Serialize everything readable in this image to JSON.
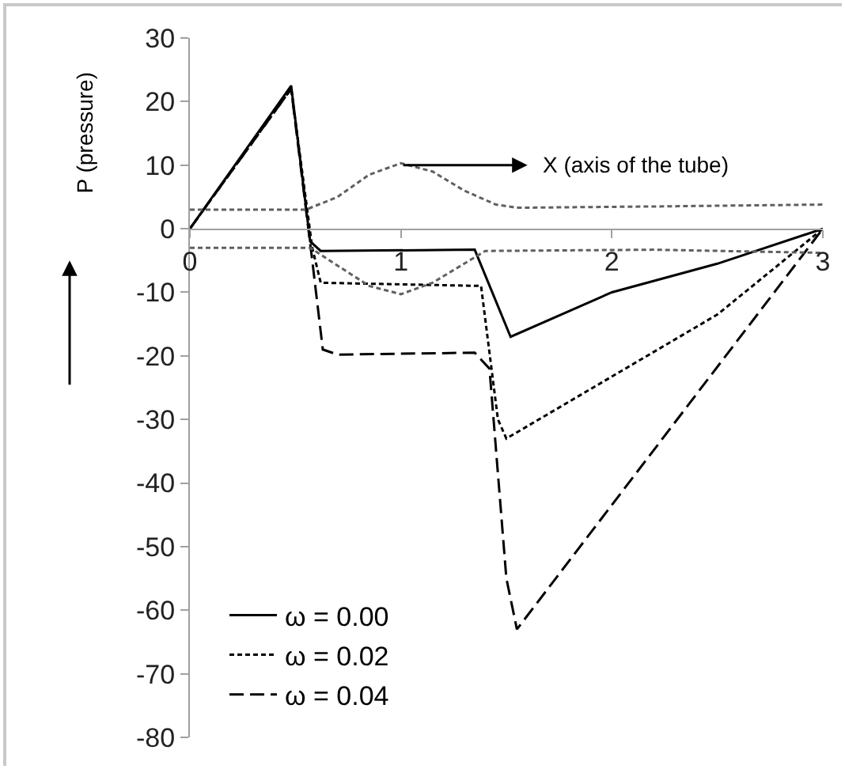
{
  "chart_data": {
    "type": "line",
    "xlabel": "X (axis of the tube)",
    "ylabel": "P (pressure)",
    "series": [
      {
        "name": "ω = 0.00",
        "color": "#000000",
        "line_style": "solid",
        "x": [
          0,
          0.48,
          0.57,
          0.62,
          1.35,
          1.52,
          2,
          2.5,
          3
        ],
        "values": [
          0,
          22.5,
          -2,
          -3.5,
          -3.3,
          -17,
          -10,
          -5.5,
          0
        ]
      },
      {
        "name": "ω = 0.02",
        "color": "#000000",
        "line_style": "dotted",
        "x": [
          0,
          0.48,
          0.58,
          0.62,
          1.38,
          1.46,
          1.5,
          2.5,
          3
        ],
        "values": [
          0,
          22,
          -3,
          -8.5,
          -9,
          -30,
          -33,
          -13.5,
          0
        ]
      },
      {
        "name": "ω = 0.04",
        "color": "#000000",
        "line_style": "dashed",
        "x": [
          0,
          0.48,
          0.58,
          0.63,
          0.7,
          1.35,
          1.42,
          1.5,
          1.55,
          3
        ],
        "values": [
          0,
          22,
          -5,
          -19,
          -19.8,
          -19.5,
          -22,
          -55,
          -63,
          0
        ]
      },
      {
        "color": "#606060",
        "line_style": "dotted",
        "x": [
          0,
          0.55,
          0.7,
          0.85,
          1,
          1.15,
          1.3,
          1.45,
          1.55,
          2.2,
          3
        ],
        "values": [
          3,
          3,
          5,
          8.5,
          10.3,
          9,
          6,
          3.8,
          3.3,
          3.5,
          3.8
        ]
      },
      {
        "color": "#606060",
        "line_style": "dotted",
        "x": [
          0,
          0.57,
          0.7,
          0.85,
          1,
          1.15,
          1.3,
          1.4,
          2.2,
          3
        ],
        "values": [
          -3,
          -3,
          -5.8,
          -9,
          -10.3,
          -8.5,
          -5.5,
          -3.5,
          -3.3,
          -3.8
        ]
      }
    ],
    "xlim": [
      0,
      3
    ],
    "xticks": [
      0,
      1,
      2,
      3
    ],
    "ylim": [
      -80,
      30
    ],
    "yticks": [
      -80,
      -70,
      -60,
      -50,
      -40,
      -30,
      -20,
      -10,
      0,
      10,
      20,
      30
    ],
    "grid": false,
    "legend": "bottom left",
    "marker": "none"
  }
}
